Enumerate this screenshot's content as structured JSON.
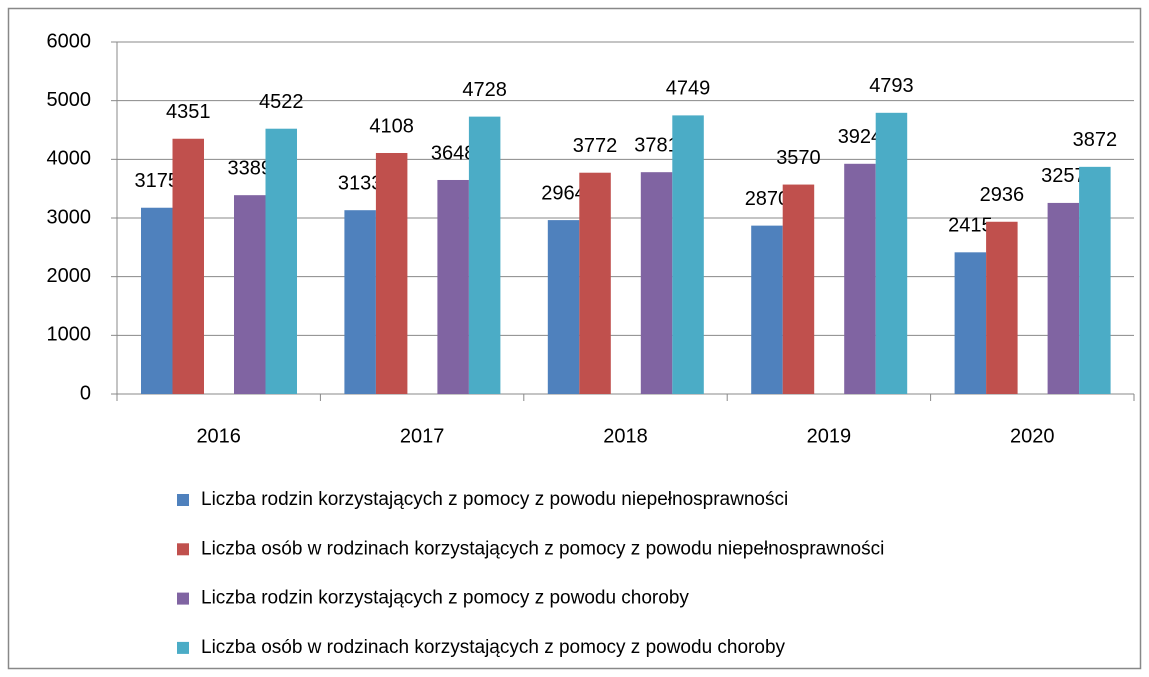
{
  "chart_data": {
    "type": "bar",
    "categories": [
      "2016",
      "2017",
      "2018",
      "2019",
      "2020"
    ],
    "series": [
      {
        "name": "Liczba rodzin korzystających z pomocy z powodu niepełnosprawności",
        "color": "#4f81bd",
        "values": [
          3175,
          3133,
          2964,
          2870,
          2415
        ]
      },
      {
        "name": "Liczba osób w rodzinach korzystających z pomocy z powodu niepełnosprawności",
        "color": "#c0504d",
        "values": [
          4351,
          4108,
          3772,
          3570,
          2936
        ]
      },
      {
        "name": "Liczba rodzin korzystających z pomocy z powodu choroby",
        "color": "#8064a2",
        "values": [
          3389,
          3648,
          3781,
          3924,
          3257
        ]
      },
      {
        "name": "Liczba osób w rodzinach korzystających z pomocy z powodu choroby",
        "color": "#4bacc6",
        "values": [
          4522,
          4728,
          4749,
          4793,
          3872
        ]
      }
    ],
    "ylim": [
      0,
      6000
    ],
    "yticks": [
      0,
      1000,
      2000,
      3000,
      4000,
      5000,
      6000
    ],
    "grid": true,
    "legend": "bottom"
  }
}
